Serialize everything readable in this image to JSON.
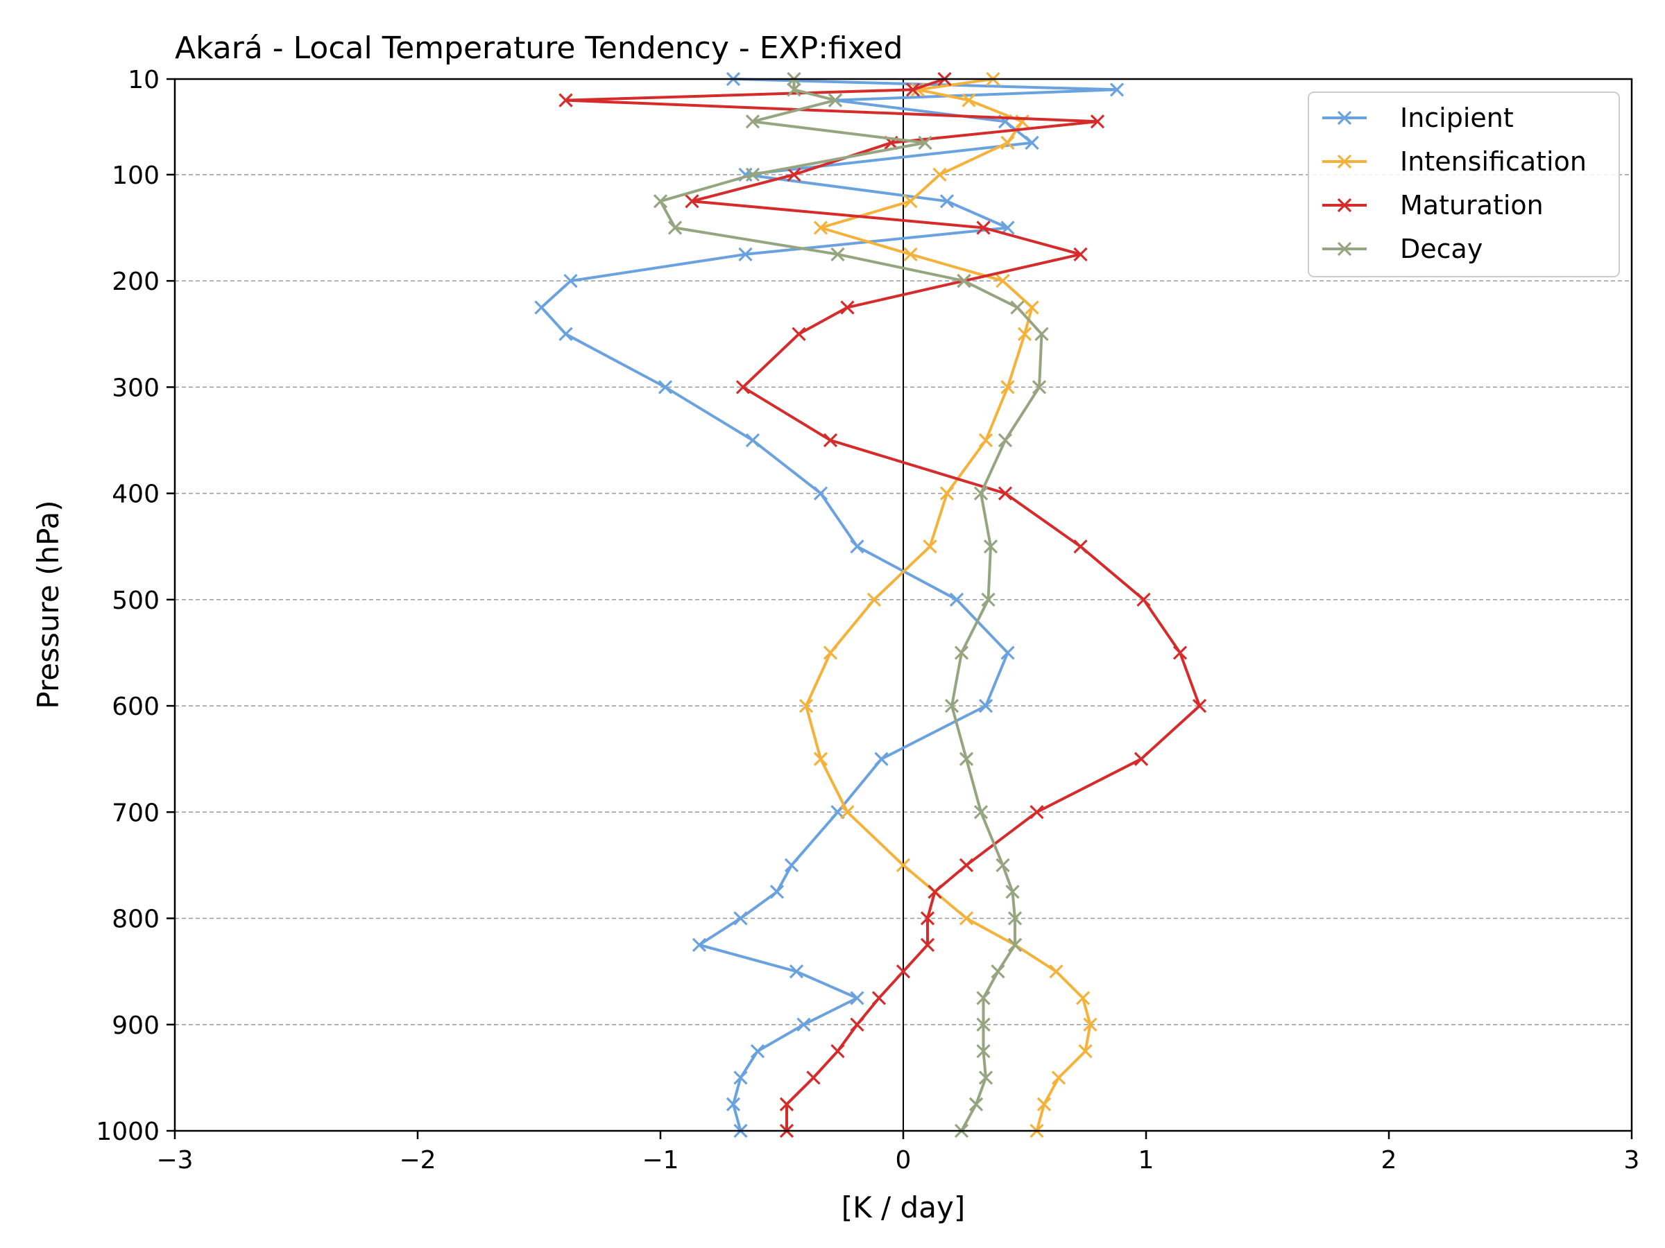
{
  "chart_data": {
    "type": "line",
    "title": "Akará - Local Temperature Tendency - EXP:fixed",
    "xlabel": "[K / day]",
    "ylabel": "Pressure (hPa)",
    "xlim": [
      -3,
      3
    ],
    "ylim": [
      1000,
      10
    ],
    "y_inverted": true,
    "x_ticks": [
      -3,
      -2,
      -1,
      0,
      1,
      2,
      3
    ],
    "x_tick_labels": [
      "−3",
      "−2",
      "−1",
      "0",
      "1",
      "2",
      "3"
    ],
    "y_ticks": [
      10,
      100,
      200,
      300,
      400,
      500,
      600,
      700,
      800,
      900,
      1000
    ],
    "y_tick_labels": [
      "10",
      "100",
      "200",
      "300",
      "400",
      "500",
      "600",
      "700",
      "800",
      "900",
      "1000"
    ],
    "grid": "horizontal dashed at y ticks",
    "zero_line": true,
    "legend_position": "top-right",
    "pressure_levels": [
      1000,
      975,
      950,
      925,
      900,
      875,
      850,
      825,
      800,
      775,
      750,
      700,
      650,
      600,
      550,
      500,
      450,
      400,
      350,
      300,
      250,
      225,
      200,
      175,
      150,
      125,
      100,
      70,
      50,
      30,
      20,
      10
    ],
    "series": [
      {
        "name": "Incipient",
        "color": "#6aa2e0",
        "values": [
          -0.67,
          -0.7,
          -0.67,
          -0.6,
          -0.41,
          -0.19,
          -0.44,
          -0.84,
          -0.67,
          -0.52,
          -0.46,
          -0.27,
          -0.09,
          0.34,
          0.43,
          0.22,
          -0.19,
          -0.34,
          -0.62,
          -0.98,
          -1.39,
          -1.49,
          -1.37,
          -0.65,
          0.43,
          0.18,
          -0.65,
          0.53,
          0.42,
          -0.28,
          0.88,
          -0.7
        ]
      },
      {
        "name": "Intensification",
        "color": "#f5b23a",
        "values": [
          0.55,
          0.58,
          0.64,
          0.75,
          0.77,
          0.74,
          0.63,
          0.46,
          0.26,
          0.13,
          0.0,
          -0.23,
          -0.34,
          -0.4,
          -0.3,
          -0.12,
          0.11,
          0.18,
          0.34,
          0.43,
          0.5,
          0.53,
          0.41,
          0.03,
          -0.34,
          0.03,
          0.15,
          0.43,
          0.49,
          0.27,
          0.06,
          0.37
        ]
      },
      {
        "name": "Maturation",
        "color": "#d62b2b",
        "values": [
          -0.48,
          -0.48,
          -0.37,
          -0.27,
          -0.19,
          -0.1,
          0.0,
          0.1,
          0.1,
          0.13,
          0.26,
          0.55,
          0.98,
          1.22,
          1.14,
          0.99,
          0.73,
          0.42,
          -0.3,
          -0.66,
          -0.43,
          -0.23,
          0.25,
          0.73,
          0.33,
          -0.87,
          -0.45,
          -0.05,
          0.8,
          -1.39,
          0.04,
          0.17
        ]
      },
      {
        "name": "Decay",
        "color": "#95a57f",
        "values": [
          0.24,
          0.3,
          0.34,
          0.33,
          0.33,
          0.33,
          0.39,
          0.46,
          0.46,
          0.45,
          0.41,
          0.32,
          0.26,
          0.2,
          0.24,
          0.35,
          0.36,
          0.32,
          0.42,
          0.56,
          0.57,
          0.47,
          0.25,
          -0.27,
          -0.94,
          -1.0,
          -0.62,
          0.09,
          -0.62,
          -0.28,
          -0.45,
          -0.45
        ]
      }
    ]
  }
}
